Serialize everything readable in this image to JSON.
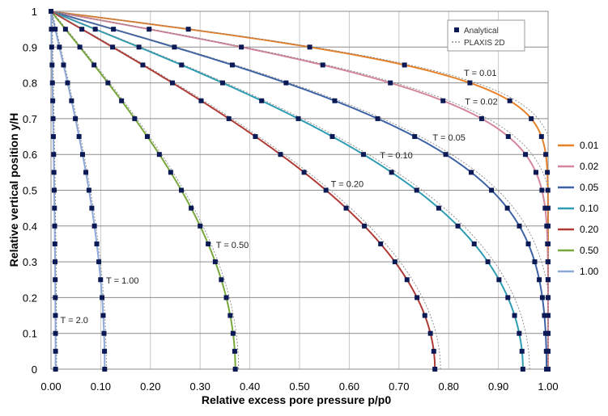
{
  "chart_data": {
    "type": "line",
    "xlabel": "Relative excess pore pressure p/p0",
    "ylabel": "Relative vertical position y/H",
    "xlim": [
      0,
      1
    ],
    "ylim": [
      0,
      1
    ],
    "x_ticks": [
      "0.00",
      "0.10",
      "0.20",
      "0.30",
      "0.40",
      "0.50",
      "0.60",
      "0.70",
      "0.80",
      "0.90",
      "1.00"
    ],
    "y_ticks": [
      "0",
      "0.1",
      "0.2",
      "0.3",
      "0.4",
      "0.5",
      "0.6",
      "0.7",
      "0.8",
      "0.9",
      "1"
    ],
    "grid": true,
    "inner_legend": {
      "analytical_label": "Analytical",
      "plaxis_label": "PLAXIS 2D"
    },
    "series": [
      {
        "name": "0.01",
        "T": 0.01,
        "color": "#E8822A",
        "label": "T = 0.01"
      },
      {
        "name": "0.02",
        "T": 0.02,
        "color": "#D4869A",
        "label": "T = 0.02"
      },
      {
        "name": "0.05",
        "T": 0.05,
        "color": "#3D63A6",
        "label": "T = 0.05"
      },
      {
        "name": "0.10",
        "T": 0.1,
        "color": "#2E9DB3",
        "label": "T = 0.10"
      },
      {
        "name": "0.20",
        "T": 0.2,
        "color": "#B03A35",
        "label": "T = 0.20"
      },
      {
        "name": "0.50",
        "T": 0.5,
        "color": "#78A83B",
        "label": "T = 0.50"
      },
      {
        "name": "1.00",
        "T": 1.0,
        "color": "#8EA9D8",
        "label": "T = 1.00"
      },
      {
        "name": "",
        "T": 2.0,
        "color": "#8EA9D8",
        "label": "T = 2.0"
      }
    ],
    "y_points": [
      0,
      0.05,
      0.1,
      0.15,
      0.2,
      0.25,
      0.3,
      0.35,
      0.4,
      0.45,
      0.5,
      0.55,
      0.6,
      0.65,
      0.7,
      0.75,
      0.8,
      0.85,
      0.9,
      0.95,
      1.0
    ]
  }
}
